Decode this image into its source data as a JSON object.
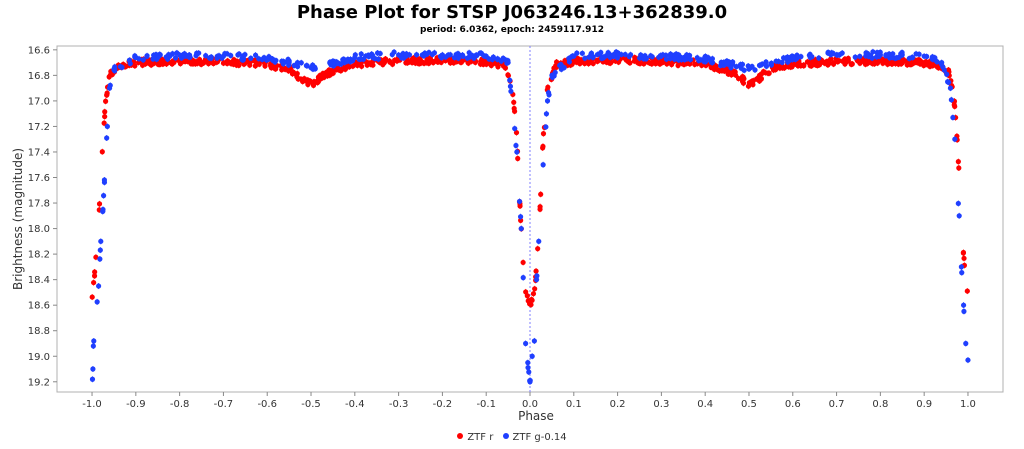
{
  "chart_data": {
    "type": "scatter",
    "title": "Phase Plot for STSP J063246.13+362839.0",
    "subtitle": "period: 6.0362, epoch: 2459117.912",
    "xlabel": "Phase",
    "ylabel": "Brightness (magnitude)",
    "xlim": [
      -1.08,
      1.08
    ],
    "ylim": [
      16.57,
      19.28
    ],
    "y_inverted": true,
    "x_ticks": [
      "-1.0",
      "-0.9",
      "-0.8",
      "-0.7",
      "-0.6",
      "-0.5",
      "-0.4",
      "-0.3",
      "-0.2",
      "-0.1",
      "0.0",
      "0.1",
      "0.2",
      "0.3",
      "0.4",
      "0.5",
      "0.6",
      "0.7",
      "0.8",
      "0.9",
      "1.0"
    ],
    "y_ticks": [
      "16.6",
      "16.8",
      "17.0",
      "17.2",
      "17.4",
      "17.6",
      "17.8",
      "18.0",
      "18.2",
      "18.4",
      "18.6",
      "18.8",
      "19.0",
      "19.2"
    ],
    "grid": false,
    "vertical_reference_line_x": 0.0,
    "legend_position": "bottom-center",
    "series": [
      {
        "name": "ZTF r",
        "color": "#ff0000",
        "marker": "circle",
        "approx_curve": [
          [
            -1.0,
            18.55
          ],
          [
            -0.995,
            18.4
          ],
          [
            -0.99,
            18.2
          ],
          [
            -0.985,
            17.95
          ],
          [
            -0.98,
            17.6
          ],
          [
            -0.975,
            17.3
          ],
          [
            -0.97,
            17.05
          ],
          [
            -0.96,
            16.8
          ],
          [
            -0.94,
            16.72
          ],
          [
            -0.9,
            16.7
          ],
          [
            -0.8,
            16.69
          ],
          [
            -0.7,
            16.69
          ],
          [
            -0.6,
            16.71
          ],
          [
            -0.55,
            16.75
          ],
          [
            -0.52,
            16.83
          ],
          [
            -0.5,
            16.87
          ],
          [
            -0.48,
            16.82
          ],
          [
            -0.45,
            16.76
          ],
          [
            -0.4,
            16.71
          ],
          [
            -0.3,
            16.69
          ],
          [
            -0.2,
            16.68
          ],
          [
            -0.1,
            16.69
          ],
          [
            -0.06,
            16.72
          ],
          [
            -0.04,
            16.9
          ],
          [
            -0.03,
            17.3
          ],
          [
            -0.025,
            17.7
          ],
          [
            -0.02,
            18.0
          ],
          [
            -0.015,
            18.3
          ],
          [
            -0.01,
            18.5
          ],
          [
            0.0,
            18.6
          ],
          [
            0.01,
            18.5
          ],
          [
            0.015,
            18.3
          ],
          [
            0.02,
            18.0
          ],
          [
            0.025,
            17.7
          ],
          [
            0.03,
            17.3
          ],
          [
            0.04,
            16.9
          ],
          [
            0.06,
            16.72
          ],
          [
            0.1,
            16.69
          ],
          [
            0.2,
            16.68
          ],
          [
            0.3,
            16.69
          ],
          [
            0.4,
            16.71
          ],
          [
            0.45,
            16.76
          ],
          [
            0.48,
            16.82
          ],
          [
            0.5,
            16.87
          ],
          [
            0.52,
            16.83
          ],
          [
            0.55,
            16.75
          ],
          [
            0.6,
            16.71
          ],
          [
            0.7,
            16.69
          ],
          [
            0.8,
            16.69
          ],
          [
            0.9,
            16.7
          ],
          [
            0.94,
            16.72
          ],
          [
            0.96,
            16.8
          ],
          [
            0.97,
            17.05
          ],
          [
            0.975,
            17.3
          ],
          [
            0.98,
            17.6
          ],
          [
            0.985,
            17.95
          ],
          [
            0.99,
            18.2
          ],
          [
            0.995,
            18.4
          ],
          [
            1.0,
            18.55
          ]
        ]
      },
      {
        "name": "ZTF g-0.14",
        "color": "#1f3fff",
        "marker": "circle",
        "points": [
          [
            -0.999,
            19.18
          ],
          [
            -0.998,
            19.1
          ],
          [
            -0.997,
            18.92
          ],
          [
            -0.985,
            18.45
          ],
          [
            -0.98,
            18.1
          ],
          [
            -0.975,
            17.85
          ],
          [
            -0.965,
            17.2
          ],
          [
            -0.96,
            16.9
          ],
          [
            -0.95,
            16.75
          ],
          [
            -0.9,
            16.66
          ],
          [
            -0.85,
            16.66
          ],
          [
            -0.8,
            16.64
          ],
          [
            -0.7,
            16.65
          ],
          [
            -0.6,
            16.67
          ],
          [
            -0.55,
            16.7
          ],
          [
            -0.5,
            16.74
          ],
          [
            -0.45,
            16.71
          ],
          [
            -0.4,
            16.66
          ],
          [
            -0.3,
            16.64
          ],
          [
            -0.2,
            16.64
          ],
          [
            -0.1,
            16.65
          ],
          [
            -0.05,
            16.7
          ],
          [
            -0.03,
            17.4
          ],
          [
            -0.02,
            18.0
          ],
          [
            -0.01,
            18.9
          ],
          [
            -0.005,
            19.05
          ],
          [
            0.0,
            19.2
          ],
          [
            0.005,
            19.0
          ],
          [
            0.01,
            18.88
          ],
          [
            0.015,
            18.4
          ],
          [
            0.02,
            18.1
          ],
          [
            0.03,
            17.5
          ],
          [
            0.04,
            17.0
          ],
          [
            0.05,
            16.8
          ],
          [
            0.1,
            16.65
          ],
          [
            0.2,
            16.64
          ],
          [
            0.3,
            16.65
          ],
          [
            0.4,
            16.67
          ],
          [
            0.45,
            16.71
          ],
          [
            0.5,
            16.75
          ],
          [
            0.55,
            16.71
          ],
          [
            0.6,
            16.66
          ],
          [
            0.7,
            16.64
          ],
          [
            0.8,
            16.64
          ],
          [
            0.9,
            16.65
          ],
          [
            0.94,
            16.7
          ],
          [
            0.96,
            16.9
          ],
          [
            0.97,
            17.3
          ],
          [
            0.98,
            17.9
          ],
          [
            0.985,
            18.3
          ],
          [
            0.99,
            18.6
          ],
          [
            0.995,
            18.9
          ],
          [
            1.0,
            19.03
          ]
        ]
      }
    ]
  }
}
